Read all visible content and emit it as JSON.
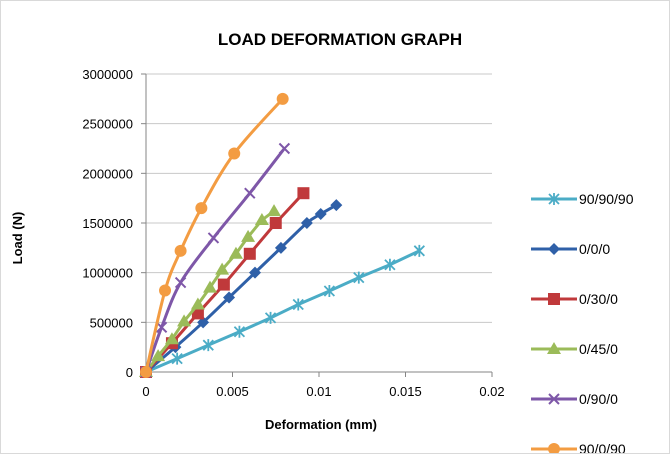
{
  "chart_data": {
    "type": "line",
    "title": "LOAD DEFORMATION GRAPH",
    "xlabel": "Deformation (mm)",
    "ylabel": "Load (N)",
    "xlim": [
      0,
      0.02
    ],
    "ylim": [
      0,
      3000000
    ],
    "x_ticks": [
      0,
      0.005,
      0.01,
      0.015,
      0.02
    ],
    "y_ticks": [
      0,
      500000,
      1000000,
      1500000,
      2000000,
      2500000,
      3000000
    ],
    "x_tick_labels": [
      "0",
      "0.005",
      "0.01",
      "0.015",
      "0.02"
    ],
    "y_tick_labels": [
      "0",
      "500000",
      "1000000",
      "1500000",
      "2000000",
      "2500000",
      "3000000"
    ],
    "grid": "horizontal",
    "legend": "right",
    "series": [
      {
        "name": "90/90/90",
        "color": "#4bacc6",
        "marker": "asterisk",
        "x": [
          0,
          0.0018,
          0.0036,
          0.0054,
          0.0072,
          0.0088,
          0.0106,
          0.0123,
          0.0141,
          0.0158
        ],
        "y": [
          0,
          135000,
          270000,
          405000,
          545000,
          680000,
          815000,
          950000,
          1080000,
          1220000
        ]
      },
      {
        "name": "0/0/0",
        "color": "#2f60a8",
        "marker": "diamond",
        "x": [
          0,
          0.0017,
          0.0033,
          0.0048,
          0.0063,
          0.0078,
          0.0093,
          0.0101,
          0.011
        ],
        "y": [
          0,
          250000,
          500000,
          750000,
          1000000,
          1250000,
          1500000,
          1590000,
          1680000
        ],
        "smooth": true
      },
      {
        "name": "0/30/0",
        "color": "#c0393b",
        "marker": "square",
        "x": [
          0,
          0.0015,
          0.003,
          0.0045,
          0.006,
          0.0075,
          0.0091
        ],
        "y": [
          0,
          290000,
          590000,
          880000,
          1190000,
          1500000,
          1800000
        ]
      },
      {
        "name": "0/45/0",
        "color": "#9bbb59",
        "marker": "triangle",
        "x": [
          0,
          0.0007,
          0.0015,
          0.0022,
          0.003,
          0.0037,
          0.0044,
          0.0052,
          0.0059,
          0.0067,
          0.0074
        ],
        "y": [
          0,
          160000,
          330000,
          510000,
          680000,
          850000,
          1030000,
          1190000,
          1360000,
          1530000,
          1620000
        ]
      },
      {
        "name": "0/90/0",
        "color": "#7e57a8",
        "marker": "x",
        "x": [
          0,
          0.0009,
          0.002,
          0.0039,
          0.006,
          0.008
        ],
        "y": [
          0,
          450000,
          900000,
          1350000,
          1800000,
          2250000
        ],
        "smooth": true
      },
      {
        "name": "90/0/90",
        "color": "#f39c42",
        "marker": "circle",
        "x": [
          0,
          0.0011,
          0.002,
          0.0032,
          0.0051,
          0.0079
        ],
        "y": [
          0,
          820000,
          1220000,
          1650000,
          2200000,
          2750000
        ],
        "smooth": true
      }
    ]
  }
}
